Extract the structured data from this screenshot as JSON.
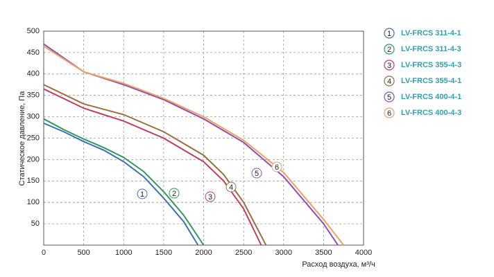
{
  "chart_data": {
    "type": "line",
    "x_label": "Расход воздуха, м³/ч",
    "y_label": "Статическое давление, Па",
    "xlim": [
      0,
      4000
    ],
    "xticks": [
      0,
      500,
      1000,
      1500,
      2000,
      2500,
      3000,
      3500,
      4000
    ],
    "ylim": [
      0,
      500
    ],
    "yticks": [
      50,
      100,
      150,
      200,
      250,
      300,
      350,
      400,
      450,
      500
    ],
    "grid": true,
    "legend": "right",
    "series": [
      {
        "name": "LV-FRCS 311-4-1",
        "label": "1",
        "color": "#3b6fb6",
        "x": [
          0,
          250,
          500,
          750,
          1000,
          1250,
          1500,
          1750,
          1930
        ],
        "values": [
          285,
          265,
          242,
          222,
          195,
          160,
          110,
          55,
          0
        ]
      },
      {
        "name": "LV-FRCS 311-4-3",
        "label": "2",
        "color": "#2e9a5a",
        "x": [
          0,
          250,
          500,
          750,
          1000,
          1250,
          1500,
          1750,
          2000
        ],
        "values": [
          295,
          270,
          248,
          228,
          205,
          172,
          125,
          70,
          0
        ]
      },
      {
        "name": "LV-FRCS 355-4-3",
        "label": "3",
        "color": "#c23b62",
        "x": [
          0,
          500,
          1000,
          1500,
          2000,
          2250,
          2500,
          2720
        ],
        "values": [
          365,
          320,
          290,
          250,
          195,
          150,
          85,
          0
        ]
      },
      {
        "name": "LV-FRCS 355-4-1",
        "label": "4",
        "color": "#9a6e3e",
        "x": [
          0,
          500,
          1000,
          1500,
          2000,
          2250,
          2500,
          2780
        ],
        "values": [
          375,
          330,
          305,
          265,
          210,
          165,
          100,
          0
        ]
      },
      {
        "name": "LV-FRCS 400-4-1",
        "label": "5",
        "color": "#8b4fb2",
        "x": [
          0,
          500,
          1000,
          1500,
          2000,
          2500,
          3000,
          3500,
          3680
        ],
        "values": [
          470,
          405,
          375,
          340,
          295,
          240,
          160,
          50,
          0
        ]
      },
      {
        "name": "LV-FRCS 400-4-3",
        "label": "6",
        "color": "#f0a062",
        "x": [
          0,
          500,
          1000,
          1500,
          2000,
          2500,
          3000,
          3500,
          3750
        ],
        "values": [
          465,
          405,
          378,
          343,
          300,
          245,
          170,
          60,
          0
        ]
      }
    ]
  }
}
